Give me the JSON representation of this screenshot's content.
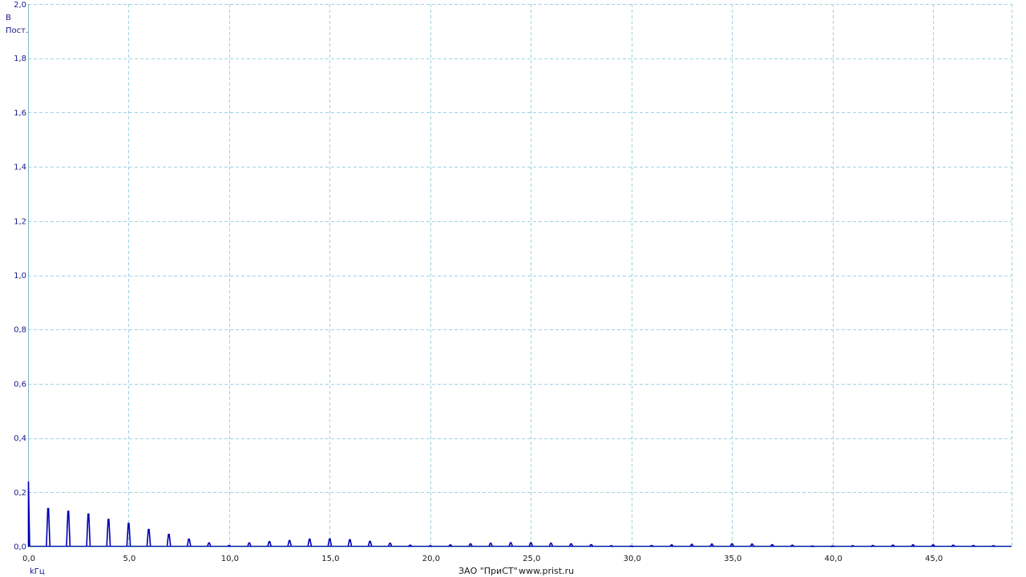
{
  "chart_data": {
    "type": "line",
    "title": "",
    "y_unit": "В",
    "y_mode": "Пост.",
    "x_unit": "kГц",
    "ylim": [
      0,
      2.0
    ],
    "xlim": [
      0,
      48.9
    ],
    "y_ticks": [
      0,
      0.2,
      0.4,
      0.6,
      0.8,
      1.0,
      1.2,
      1.4,
      1.6,
      1.8,
      2.0
    ],
    "y_tick_labels": [
      "0,0",
      "0,2",
      "0,4",
      "0,6",
      "0,8",
      "1,0",
      "1,2",
      "1,4",
      "1,6",
      "1,8",
      "2,0"
    ],
    "x_ticks": [
      0,
      5,
      10,
      15,
      20,
      25,
      30,
      35,
      40,
      45
    ],
    "x_tick_labels": [
      "0,0",
      "5,0",
      "10,0",
      "15,0",
      "20,0",
      "25,0",
      "30,0",
      "35,0",
      "40,0",
      "45,0"
    ],
    "grid": true,
    "series": [
      {
        "color": "#0000b4",
        "x": [
          0,
          1,
          2,
          3,
          4,
          5,
          6,
          7,
          8,
          9,
          10,
          11,
          12,
          13,
          14,
          15,
          16,
          17,
          18,
          19,
          20,
          21,
          22,
          23,
          24,
          25,
          26,
          27,
          28,
          29,
          30,
          31,
          32,
          33,
          34,
          35,
          36,
          37,
          38,
          39,
          40,
          41,
          42,
          43,
          44,
          45,
          46,
          47,
          48
        ],
        "values": [
          0.24,
          0.14,
          0.13,
          0.12,
          0.1,
          0.085,
          0.063,
          0.045,
          0.027,
          0.013,
          0.004,
          0.013,
          0.018,
          0.022,
          0.027,
          0.028,
          0.025,
          0.019,
          0.012,
          0.005,
          0.003,
          0.006,
          0.01,
          0.012,
          0.014,
          0.014,
          0.012,
          0.01,
          0.007,
          0.003,
          0.002,
          0.004,
          0.006,
          0.008,
          0.009,
          0.01,
          0.009,
          0.007,
          0.005,
          0.002,
          0.002,
          0.003,
          0.004,
          0.005,
          0.006,
          0.006,
          0.005,
          0.004,
          0.003
        ]
      }
    ]
  },
  "footer": {
    "company": "ЗАО \"ПриСТ\"",
    "website": "www.prist.ru"
  }
}
